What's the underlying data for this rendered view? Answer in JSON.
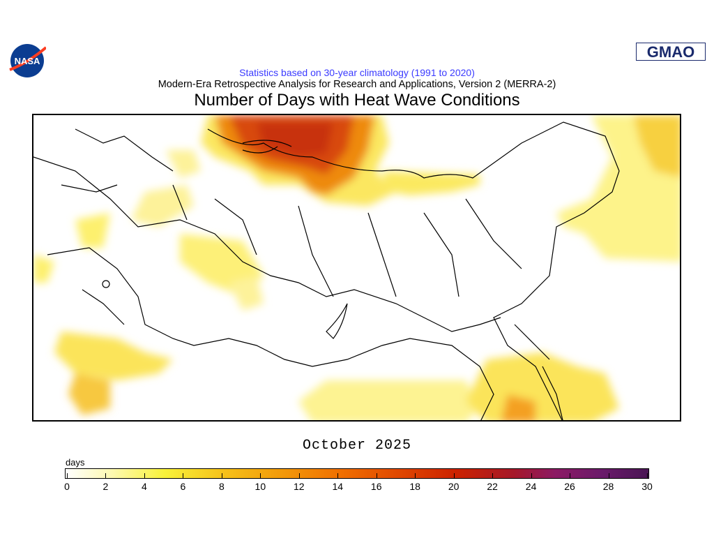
{
  "logos": {
    "left": "NASA",
    "right": "GMAO"
  },
  "header": {
    "stats_line": "Statistics based on 30-year climatology (1991 to 2020)",
    "subtitle": "Modern-Era Retrospective Analysis for Research and Applications, Version 2 (MERRA-2)",
    "title": "Number of Days with Heat Wave Conditions"
  },
  "period": "October 2025",
  "colorbar": {
    "units": "days",
    "min": 0,
    "max": 30,
    "ticks": [
      "0",
      "2",
      "4",
      "6",
      "8",
      "10",
      "12",
      "14",
      "16",
      "18",
      "20",
      "22",
      "24",
      "26",
      "28",
      "30"
    ],
    "colors": [
      "#ffffff",
      "#f8f23a",
      "#f29a0a",
      "#e04800",
      "#cc2200",
      "#8c1a64",
      "#4a1654"
    ]
  }
}
